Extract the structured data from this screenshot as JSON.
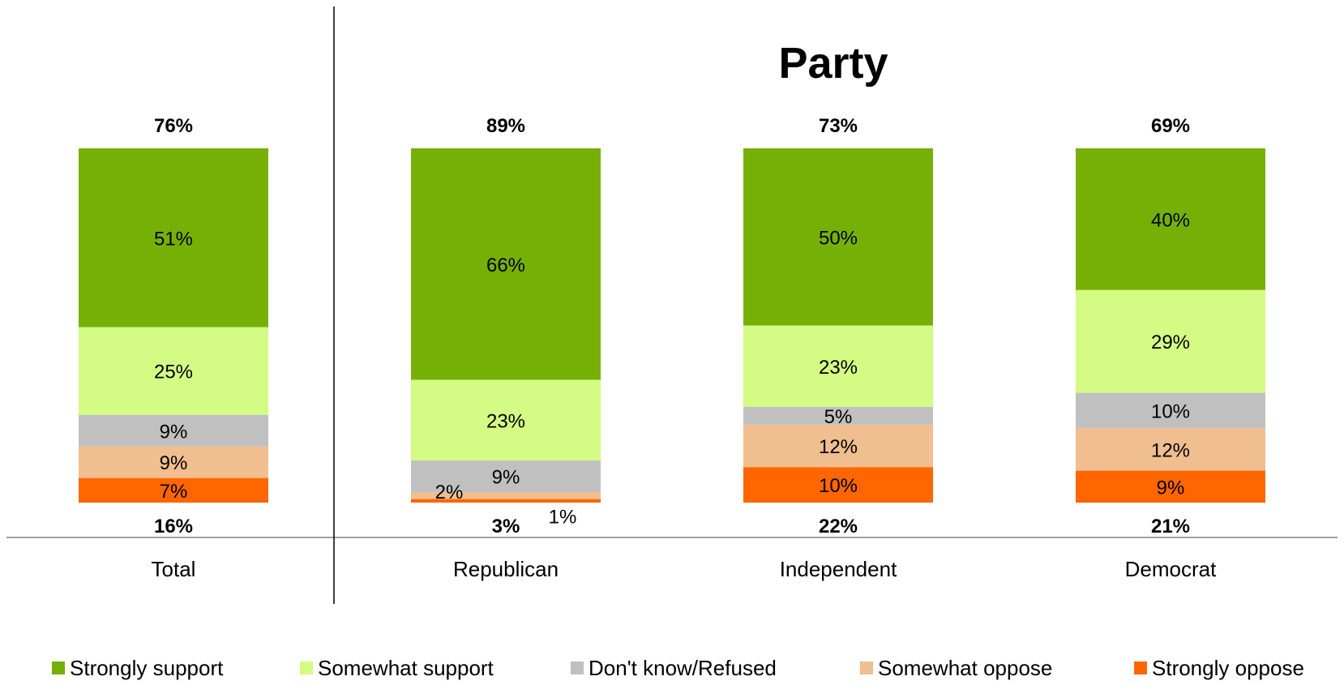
{
  "chart_data": {
    "type": "bar",
    "stacked": true,
    "title": "Party",
    "categories": [
      "Total",
      "Republican",
      "Independent",
      "Democrat"
    ],
    "series": [
      {
        "name": "Strongly support",
        "color": "#76B007",
        "values": [
          51,
          66,
          50,
          40
        ],
        "labels": [
          "51%",
          "66%",
          "50%",
          "40%"
        ]
      },
      {
        "name": "Somewhat support",
        "color": "#D4FB84",
        "values": [
          25,
          23,
          23,
          29
        ],
        "labels": [
          "25%",
          "23%",
          "23%",
          "29%"
        ]
      },
      {
        "name": "Don't know/Refused",
        "color": "#C0C0C0",
        "values": [
          9,
          9,
          5,
          10
        ],
        "labels": [
          "9%",
          "9%",
          "5%",
          "10%"
        ]
      },
      {
        "name": "Somewhat oppose",
        "color": "#F0BE8F",
        "values": [
          9,
          2,
          12,
          12
        ],
        "labels": [
          "9%",
          "2%",
          "12%",
          "12%"
        ]
      },
      {
        "name": "Strongly oppose",
        "color": "#FF6600",
        "values": [
          7,
          1,
          10,
          9
        ],
        "labels": [
          "7%",
          "1%",
          "10%",
          "9%"
        ]
      }
    ],
    "support_totals": [
      "76%",
      "89%",
      "73%",
      "69%"
    ],
    "oppose_totals": [
      "16%",
      "3%",
      "22%",
      "21%"
    ],
    "legend_position": "bottom",
    "grid": false
  }
}
